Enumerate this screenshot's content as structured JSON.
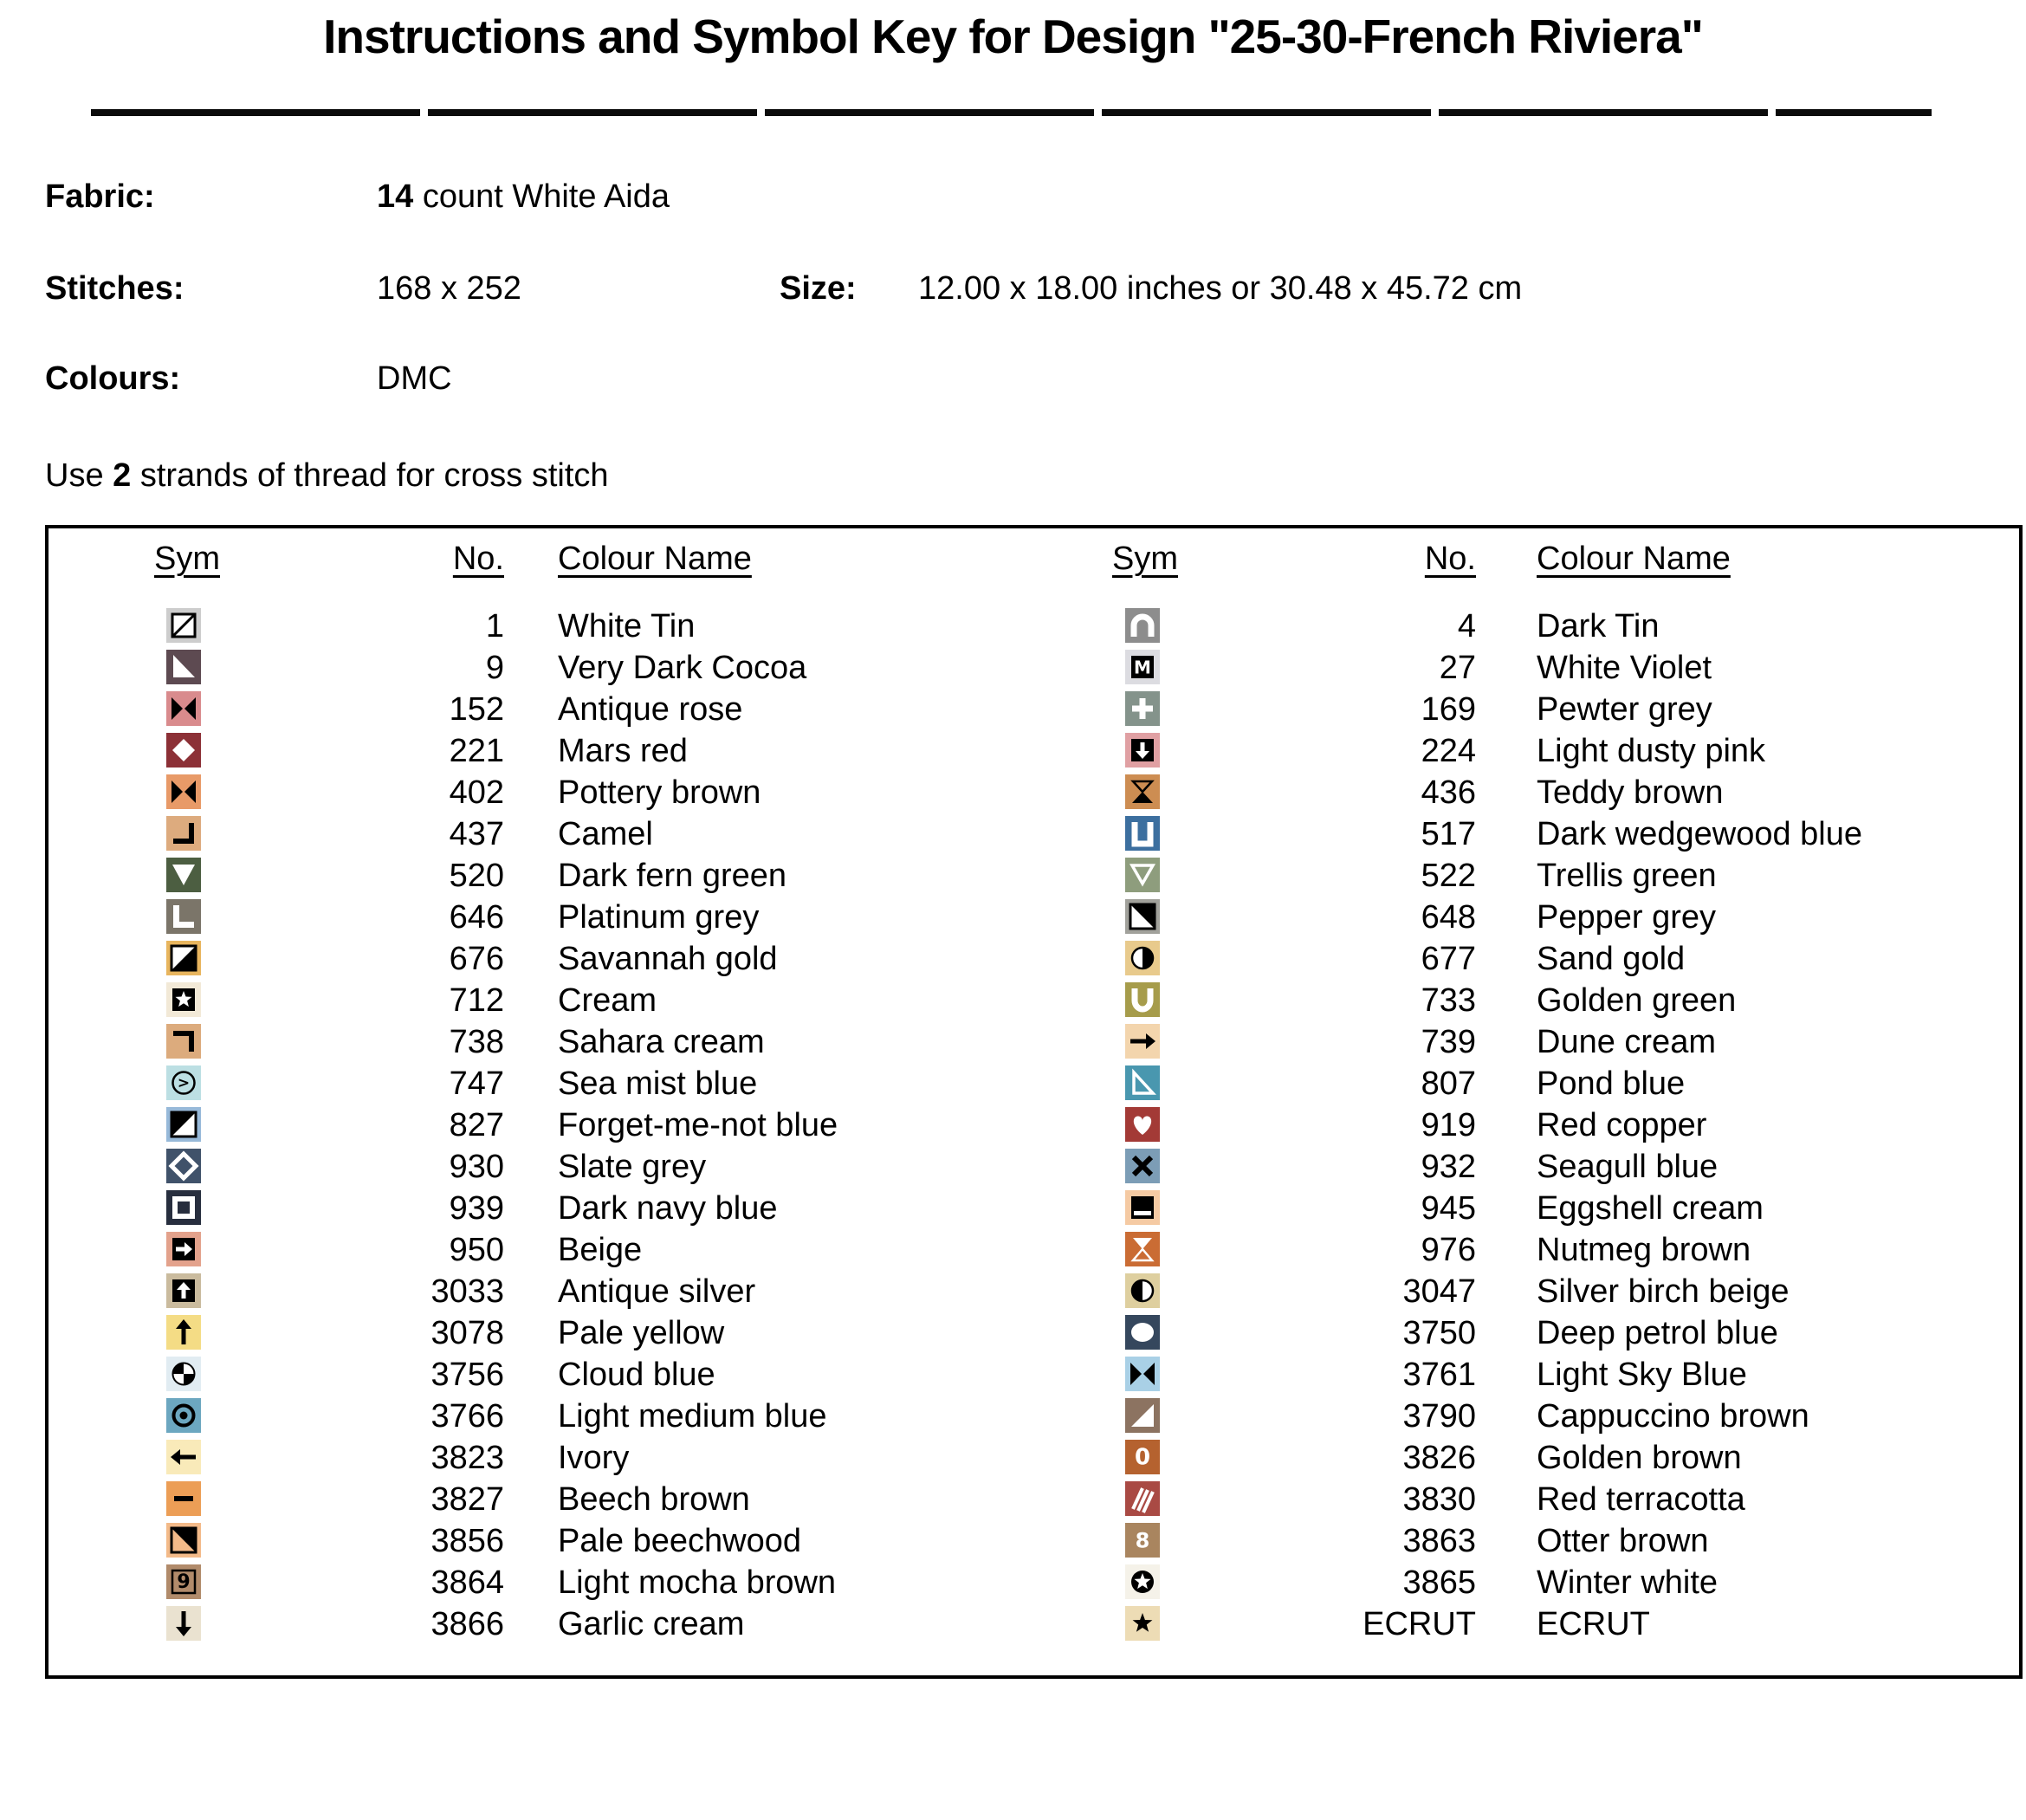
{
  "title": "Instructions and Symbol Key for Design \"25-30-French Riviera\"",
  "info": {
    "fabric_label": "Fabric:",
    "fabric_bold": "14",
    "fabric_rest": " count White Aida",
    "stitches_label": "Stitches:",
    "stitches_value": "168 x 252",
    "size_label": "Size:",
    "size_value": "12.00 x 18.00 inches or 30.48 x 45.72 cm",
    "colours_label": "Colours:",
    "colours_value": "DMC",
    "strands_prefix": "Use ",
    "strands_bold": "2",
    "strands_suffix": " strands of thread for cross stitch"
  },
  "table": {
    "headers": {
      "sym": "Sym",
      "no": "No.",
      "name": "Colour Name"
    },
    "left_rows": [
      {
        "no": "1",
        "name": "White Tin",
        "bg": "#cdcdcd",
        "glyph": "box-diagonal"
      },
      {
        "no": "9",
        "name": "Very Dark Cocoa",
        "bg": "#5d4a51",
        "glyph": "triangle-bl-white"
      },
      {
        "no": "152",
        "name": "Antique rose",
        "bg": "#d98b8d",
        "glyph": "bowtie-black"
      },
      {
        "no": "221",
        "name": "Mars red",
        "bg": "#8c3036",
        "glyph": "diamond-white"
      },
      {
        "no": "402",
        "name": "Pottery brown",
        "bg": "#e89a68",
        "glyph": "bowtie-black"
      },
      {
        "no": "437",
        "name": "Camel",
        "bg": "#ddab7e",
        "glyph": "corner-bottom-right-black"
      },
      {
        "no": "520",
        "name": "Dark fern green",
        "bg": "#4c5e41",
        "glyph": "triangle-down-white"
      },
      {
        "no": "646",
        "name": "Platinum grey",
        "bg": "#7b7569",
        "glyph": "letter-l-white"
      },
      {
        "no": "676",
        "name": "Savannah gold",
        "bg": "#e8b55e",
        "glyph": "box-half-black-br"
      },
      {
        "no": "712",
        "name": "Cream",
        "bg": "#f2e9d7",
        "glyph": "star-white-on-black"
      },
      {
        "no": "738",
        "name": "Sahara cream",
        "bg": "#dcab7d",
        "glyph": "corner-top-right-black"
      },
      {
        "no": "747",
        "name": "Sea mist blue",
        "bg": "#bcdfe3",
        "glyph": "circled-greater-than"
      },
      {
        "no": "827",
        "name": "Forget-me-not blue",
        "bg": "#97b9d9",
        "glyph": "box-half-black-tl"
      },
      {
        "no": "930",
        "name": "Slate grey",
        "bg": "#40526a",
        "glyph": "diamond-outline-white"
      },
      {
        "no": "939",
        "name": "Dark navy blue",
        "bg": "#272e3e",
        "glyph": "square-outline-white"
      },
      {
        "no": "950",
        "name": "Beige",
        "bg": "#e3a28c",
        "glyph": "arrow-right-white-on-black"
      },
      {
        "no": "3033",
        "name": "Antique silver",
        "bg": "#cabb9e",
        "glyph": "arrow-up-white-on-black"
      },
      {
        "no": "3078",
        "name": "Pale yellow",
        "bg": "#f4dc85",
        "glyph": "arrow-up-black"
      },
      {
        "no": "3756",
        "name": "Cloud blue",
        "bg": "#e1ecf2",
        "glyph": "circle-quarters"
      },
      {
        "no": "3766",
        "name": "Light medium blue",
        "bg": "#6ca7c0",
        "glyph": "circle-dot"
      },
      {
        "no": "3823",
        "name": "Ivory",
        "bg": "#f9eab9",
        "glyph": "arrow-left-black"
      },
      {
        "no": "3827",
        "name": "Beech brown",
        "bg": "#ec9e56",
        "glyph": "dash-black"
      },
      {
        "no": "3856",
        "name": "Pale beechwood",
        "bg": "#f3ba89",
        "glyph": "box-triangle-tr-black"
      },
      {
        "no": "3864",
        "name": "Light mocha brown",
        "bg": "#b18b6b",
        "glyph": "boxed-nine"
      },
      {
        "no": "3866",
        "name": "Garlic cream",
        "bg": "#eae2d0",
        "glyph": "arrow-down-black"
      }
    ],
    "right_rows": [
      {
        "no": "4",
        "name": "Dark Tin",
        "bg": "#8d8d8d",
        "glyph": "arch-white"
      },
      {
        "no": "27",
        "name": "White Violet",
        "bg": "#dcdce1",
        "glyph": "boxed-m-white"
      },
      {
        "no": "169",
        "name": "Pewter grey",
        "bg": "#84938b",
        "glyph": "plus-white"
      },
      {
        "no": "224",
        "name": "Light dusty pink",
        "bg": "#e0a0a3",
        "glyph": "arrow-down-white-on-black"
      },
      {
        "no": "436",
        "name": "Teddy brown",
        "bg": "#cd8d52",
        "glyph": "hourglass-black"
      },
      {
        "no": "517",
        "name": "Dark wedgewood blue",
        "bg": "#3c6f9f",
        "glyph": "u-square-white"
      },
      {
        "no": "522",
        "name": "Trellis green",
        "bg": "#8e9d7d",
        "glyph": "triangle-down-outline-white"
      },
      {
        "no": "648",
        "name": "Pepper grey",
        "bg": "#a1a19b",
        "glyph": "box-half-black-tr"
      },
      {
        "no": "677",
        "name": "Sand gold",
        "bg": "#e8ca8c",
        "glyph": "circle-half-right-black"
      },
      {
        "no": "733",
        "name": "Golden green",
        "bg": "#a69c4b",
        "glyph": "u-round-white"
      },
      {
        "no": "739",
        "name": "Dune cream",
        "bg": "#f3d5ad",
        "glyph": "arrow-right-black"
      },
      {
        "no": "807",
        "name": "Pond blue",
        "bg": "#4997af",
        "glyph": "triangle-outline-white-bl"
      },
      {
        "no": "919",
        "name": "Red copper",
        "bg": "#a33a36",
        "glyph": "heart-white"
      },
      {
        "no": "932",
        "name": "Seagull blue",
        "bg": "#7c9db6",
        "glyph": "x-black"
      },
      {
        "no": "945",
        "name": "Eggshell cream",
        "bg": "#f5caa3",
        "glyph": "black-box-white-stripe"
      },
      {
        "no": "976",
        "name": "Nutmeg brown",
        "bg": "#ca6c34",
        "glyph": "hourglass-white"
      },
      {
        "no": "3047",
        "name": "Silver birch beige",
        "bg": "#decf9f",
        "glyph": "circle-half-left-black"
      },
      {
        "no": "3750",
        "name": "Deep petrol blue",
        "bg": "#35475d",
        "glyph": "ellipse-white"
      },
      {
        "no": "3761",
        "name": "Light Sky Blue",
        "bg": "#a9d0e6",
        "glyph": "bowtie-black"
      },
      {
        "no": "3790",
        "name": "Cappuccino brown",
        "bg": "#8c7361",
        "glyph": "triangle-br-white"
      },
      {
        "no": "3826",
        "name": "Golden brown",
        "bg": "#b5622f",
        "glyph": "zero-white"
      },
      {
        "no": "3830",
        "name": "Red terracotta",
        "bg": "#a94a44",
        "glyph": "stripes-white"
      },
      {
        "no": "3863",
        "name": "Otter brown",
        "bg": "#a9855f",
        "glyph": "eight-white"
      },
      {
        "no": "3865",
        "name": "Winter white",
        "bg": "#f5f2e9",
        "glyph": "star-white-in-black-circle"
      },
      {
        "no": "ECRUT",
        "name": "ECRUT",
        "bg": "#eddcb5",
        "glyph": "star-black"
      }
    ]
  }
}
